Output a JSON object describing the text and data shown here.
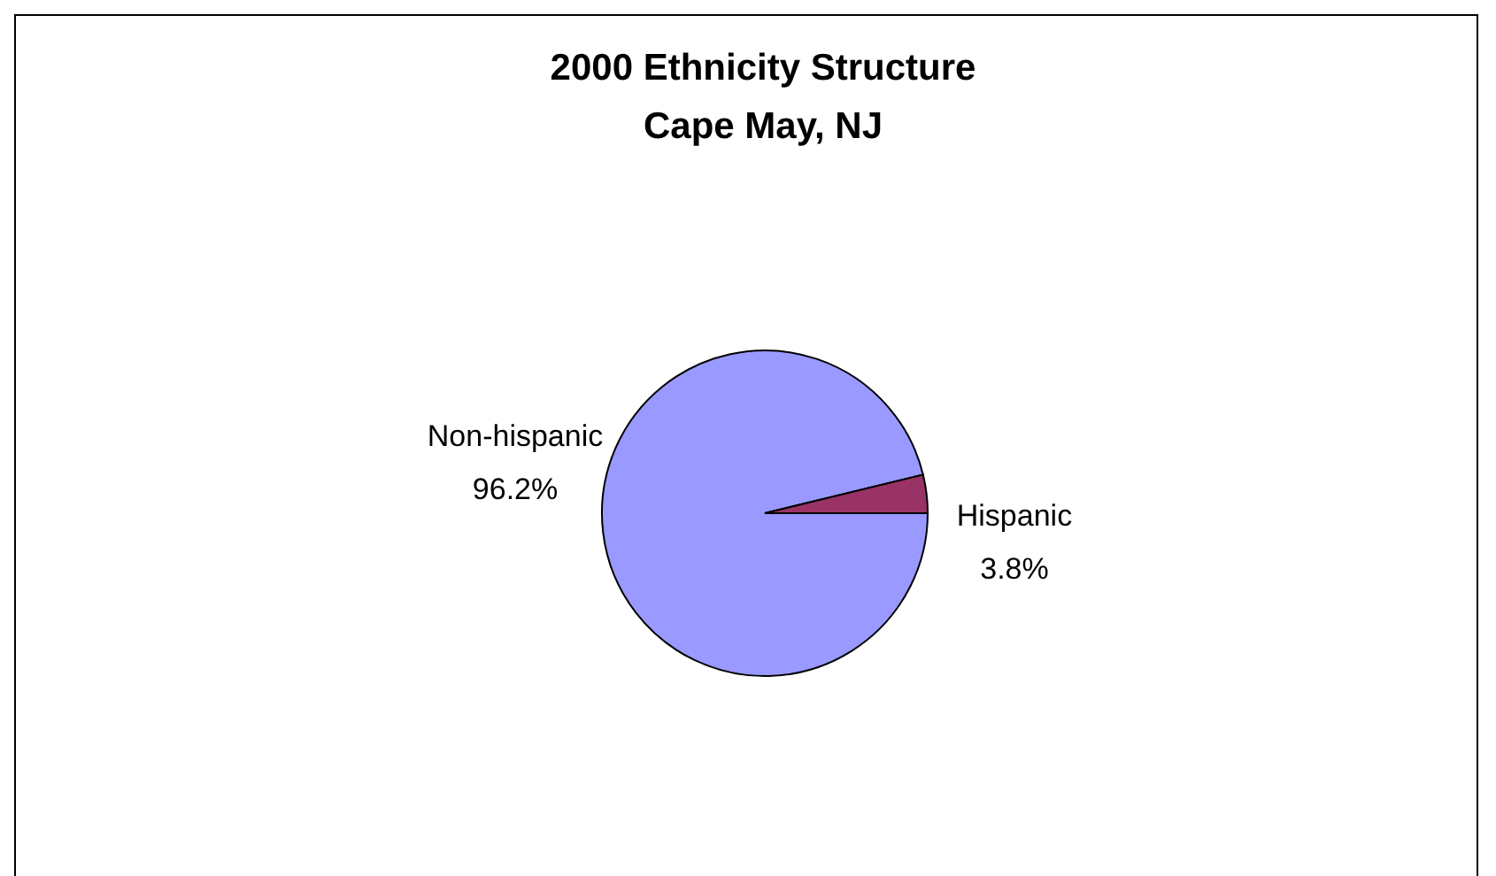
{
  "chart_data": {
    "type": "pie",
    "title": "2000 Ethnicity Structure\nCape May, NJ",
    "categories": [
      "Non-hispanic",
      "Hispanic"
    ],
    "values": [
      96.2,
      3.8
    ],
    "value_labels": [
      "96.2%",
      "3.8%"
    ],
    "colors": [
      "#9999ff",
      "#993366"
    ]
  }
}
